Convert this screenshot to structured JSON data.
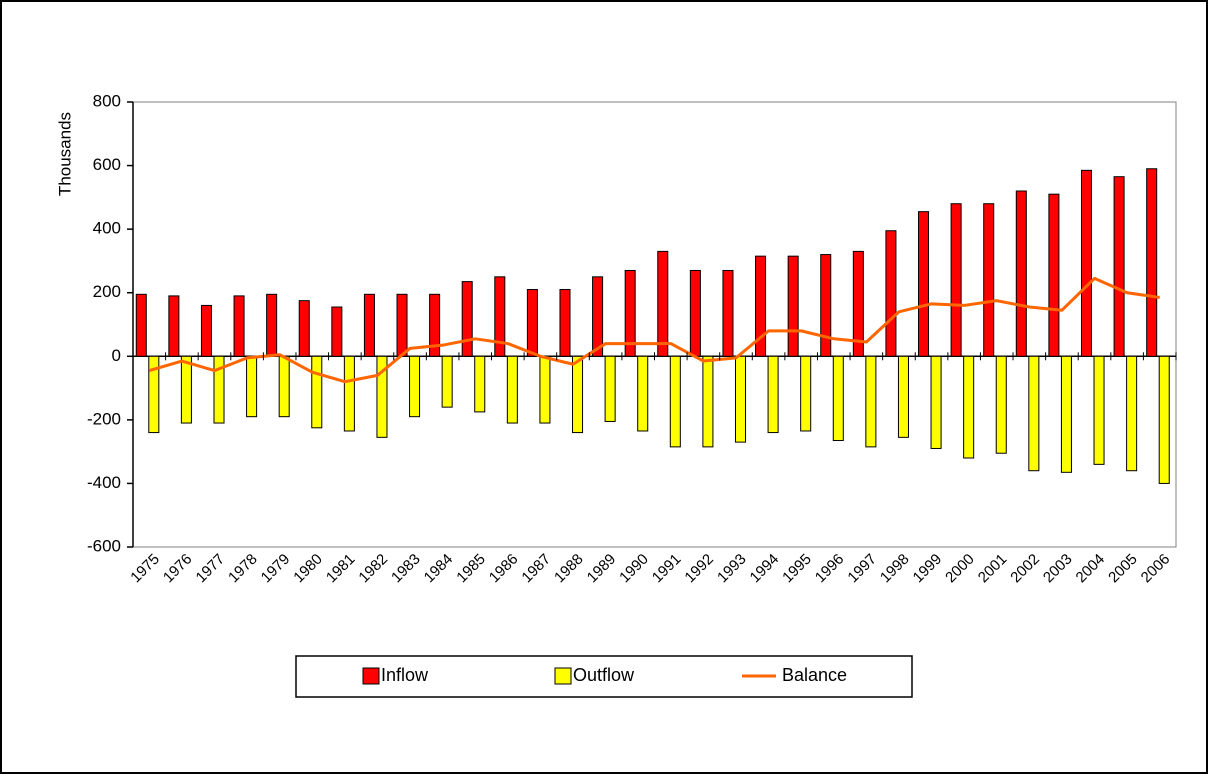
{
  "chart_data": {
    "type": "bar",
    "y_label": "Thousands",
    "categories": [
      "1975",
      "1976",
      "1977",
      "1978",
      "1979",
      "1980",
      "1981",
      "1982",
      "1983",
      "1984",
      "1985",
      "1986",
      "1987",
      "1988",
      "1989",
      "1990",
      "1991",
      "1992",
      "1993",
      "1994",
      "1995",
      "1996",
      "1997",
      "1998",
      "1999",
      "2000",
      "2001",
      "2002",
      "2003",
      "2004",
      "2005",
      "2006"
    ],
    "series": [
      {
        "name": "Inflow",
        "type": "bar",
        "color": "#ff0000",
        "values": [
          195,
          190,
          160,
          190,
          195,
          175,
          155,
          195,
          195,
          195,
          235,
          250,
          210,
          210,
          250,
          270,
          330,
          270,
          270,
          315,
          315,
          320,
          330,
          395,
          455,
          480,
          480,
          520,
          510,
          585,
          565,
          590
        ]
      },
      {
        "name": "Outflow",
        "type": "bar",
        "color": "#ffff00",
        "values": [
          -240,
          -210,
          -210,
          -190,
          -190,
          -225,
          -235,
          -255,
          -190,
          -160,
          -175,
          -210,
          -210,
          -240,
          -205,
          -235,
          -285,
          -285,
          -270,
          -240,
          -235,
          -265,
          -285,
          -255,
          -290,
          -320,
          -305,
          -360,
          -365,
          -340,
          -360,
          -400
        ]
      },
      {
        "name": "Balance",
        "type": "line",
        "color": "#ff6600",
        "values": [
          -45,
          -15,
          -45,
          -5,
          5,
          -50,
          -80,
          -60,
          25,
          35,
          55,
          40,
          0,
          -25,
          40,
          40,
          40,
          -15,
          -5,
          80,
          80,
          55,
          45,
          140,
          165,
          160,
          175,
          155,
          145,
          245,
          200,
          185
        ]
      }
    ],
    "ylim": [
      -600,
      800
    ],
    "yticks": [
      -600,
      -400,
      -200,
      0,
      200,
      400,
      600,
      800
    ],
    "legend": "bottom"
  }
}
